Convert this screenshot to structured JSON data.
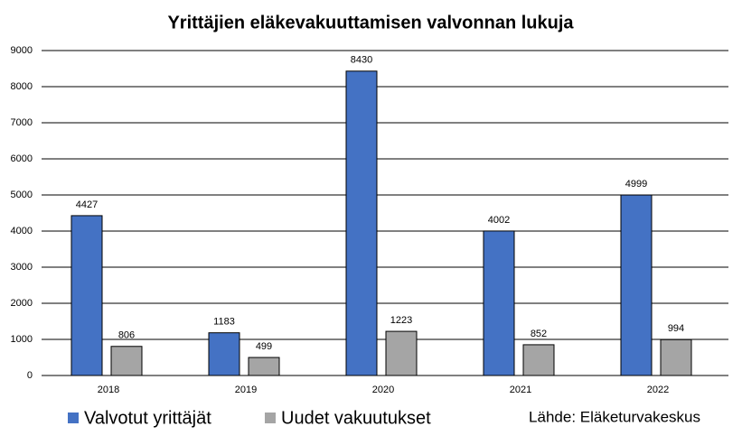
{
  "chart_data": {
    "type": "bar",
    "title": "Yrittäjien eläkevakuuttamisen valvonnan lukuja",
    "categories": [
      "2018",
      "2019",
      "2020",
      "2021",
      "2022"
    ],
    "series": [
      {
        "name": "Valvotut yrittäjät",
        "color": "#4472c4",
        "values": [
          4427,
          1183,
          8430,
          4002,
          4999
        ]
      },
      {
        "name": "Uudet vakuutukset",
        "color": "#a5a5a5",
        "values": [
          806,
          499,
          1223,
          852,
          994
        ]
      }
    ],
    "ylim": [
      0,
      9000
    ],
    "yticks": [
      0,
      1000,
      2000,
      3000,
      4000,
      5000,
      6000,
      7000,
      8000,
      9000
    ],
    "grid": true,
    "source": "Lähde: Eläketurvakeskus"
  }
}
